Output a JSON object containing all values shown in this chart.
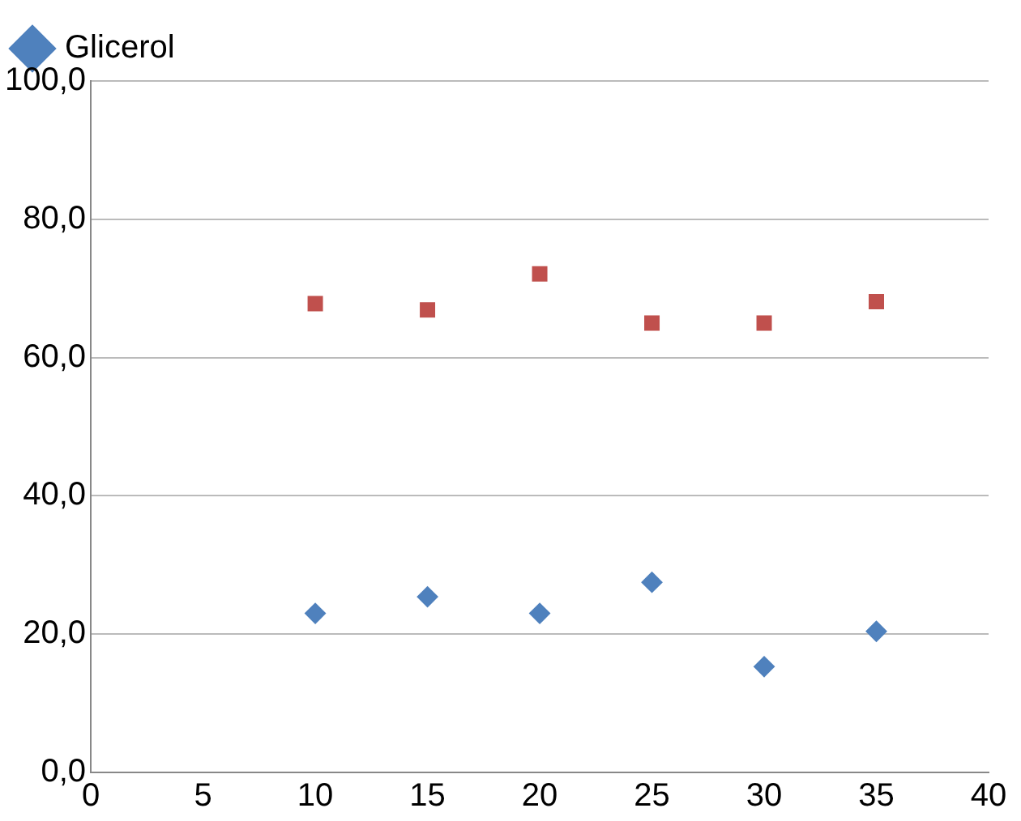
{
  "chart_data": {
    "type": "scatter",
    "x": [
      10,
      15,
      20,
      25,
      30,
      35
    ],
    "series": [
      {
        "name": "Glicerol",
        "color": "#4f81bd",
        "marker": "diamond",
        "values": [
          23.0,
          25.4,
          23.0,
          27.5,
          15.3,
          20.4
        ]
      },
      {
        "color": "#c0504d",
        "marker": "square",
        "values": [
          67.8,
          66.9,
          72.1,
          65.0,
          65.0,
          68.1
        ]
      }
    ],
    "xlim": [
      0,
      40
    ],
    "xticks": [
      0,
      5,
      10,
      15,
      20,
      25,
      30,
      35,
      40
    ],
    "ylim": [
      0,
      100
    ],
    "yticks": [
      {
        "value": 0,
        "label": "0,0"
      },
      {
        "value": 20,
        "label": "20,0"
      },
      {
        "value": 40,
        "label": "40,0"
      },
      {
        "value": 60,
        "label": "60,0"
      },
      {
        "value": 80,
        "label": "80,0"
      },
      {
        "value": 100,
        "label": "100,0"
      }
    ],
    "grid": "y",
    "legend": "top left"
  }
}
